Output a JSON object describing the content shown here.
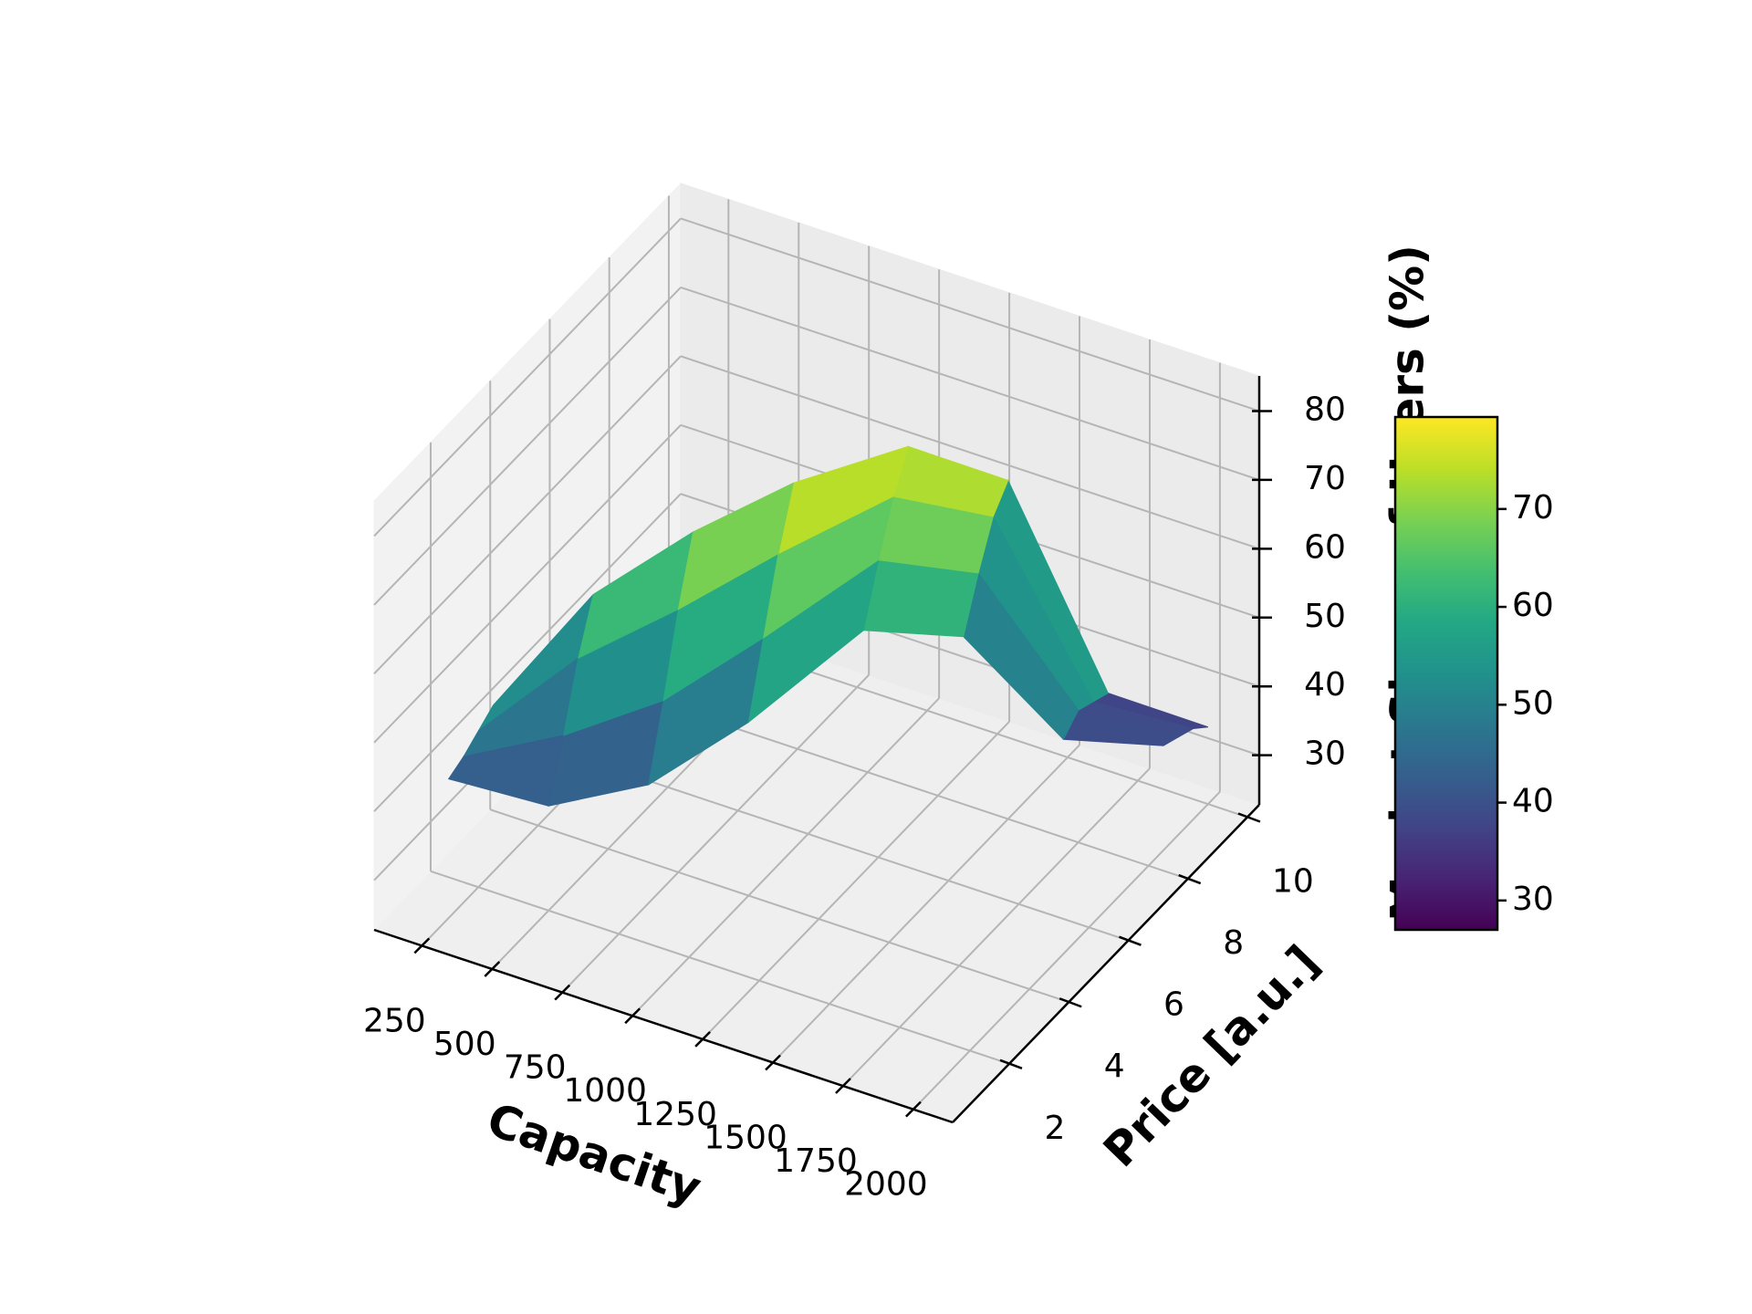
{
  "chart_data": {
    "type": "surface",
    "xlabel": "Capacity",
    "ylabel": "Price [a.u.]",
    "colorbar_label": "Market Share of Users (%)",
    "colormap": "viridis",
    "grid": true,
    "xlim": [
      80,
      2140
    ],
    "xticks": [
      250,
      500,
      750,
      1000,
      1250,
      1500,
      1750,
      2000
    ],
    "ylim": [
      0.1,
      10.4
    ],
    "yticks": [
      2,
      4,
      6,
      8,
      10
    ],
    "zlim": [
      22.8,
      85.1
    ],
    "zticks": [
      30,
      40,
      50,
      60,
      70,
      80
    ],
    "clim": [
      27,
      79.4
    ],
    "cticks": [
      30,
      40,
      50,
      60,
      70
    ],
    "x": [
      250,
      500,
      750,
      1000,
      1250,
      1500,
      1750,
      2000
    ],
    "y": [
      [
        1,
        1.5,
        2,
        2.5
      ],
      [
        2,
        2.5,
        3,
        3.5
      ],
      [
        3,
        3.5,
        4,
        4.5
      ],
      [
        4,
        4.5,
        5,
        5.5
      ],
      [
        5.5,
        6,
        6.5,
        7
      ],
      [
        6.5,
        7,
        7.5,
        8
      ],
      [
        7.5,
        8,
        8.5,
        9
      ],
      [
        8.5,
        9,
        9.5,
        10
      ]
    ],
    "z": [
      [
        43,
        44,
        45.5,
        47
      ],
      [
        38,
        46,
        55,
        62
      ],
      [
        40,
        50,
        61,
        70
      ],
      [
        48,
        58,
        68,
        76
      ],
      [
        58,
        66,
        73,
        78
      ],
      [
        56,
        63,
        69,
        72
      ],
      [
        40,
        42,
        41,
        40
      ],
      [
        38,
        37,
        36,
        34
      ]
    ]
  }
}
